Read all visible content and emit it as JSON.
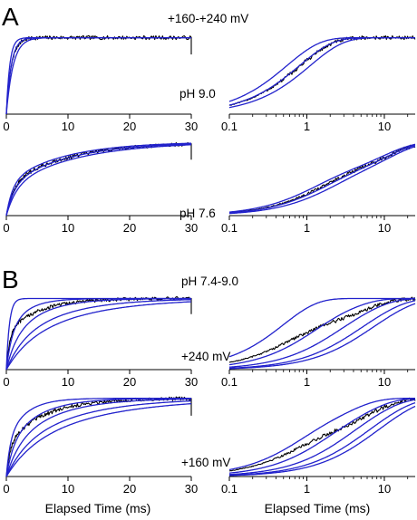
{
  "panel_labels": [
    "A",
    "B"
  ],
  "annotations": {
    "a_voltage": "+160-+240 mV",
    "a_ph_top": "pH 9.0",
    "a_ph_bottom": "pH 7.6",
    "b_ph": "pH 7.4-9.0",
    "b_voltage_top": "+240 mV",
    "b_voltage_bottom": "+160 mV"
  },
  "xlabels": {
    "left": "Elapsed Time (ms)",
    "right": "Elapsed Time (ms)"
  },
  "colors": {
    "data": "#000000",
    "fit": "#2222cc"
  },
  "chart_data": [
    {
      "type": "line",
      "id": "A-pH9.0-linear",
      "xscale": "linear",
      "xlim": [
        0,
        30
      ],
      "xticks": [
        0,
        10,
        20,
        30
      ],
      "tick_labels": [
        "0",
        "10",
        "20",
        "30"
      ],
      "ylim": [
        0,
        1.1
      ],
      "annotation": "pH 9.0",
      "series": [
        {
          "role": "data",
          "tau": [
            0.75,
            0.9
          ],
          "w": [
            0.5,
            0.5
          ],
          "amp": 1.0
        },
        {
          "role": "fit",
          "tau": [
            0.55
          ],
          "w": [
            1
          ],
          "amp": 1.0
        },
        {
          "role": "fit",
          "tau": [
            0.8
          ],
          "w": [
            1
          ],
          "amp": 1.0
        },
        {
          "role": "fit",
          "tau": [
            1.1
          ],
          "w": [
            1
          ],
          "amp": 1.0
        }
      ]
    },
    {
      "type": "line",
      "id": "A-pH9.0-log",
      "xscale": "log",
      "xlim": [
        0.1,
        25
      ],
      "xticks": [
        0.1,
        1,
        10
      ],
      "tick_labels": [
        "0.1",
        "1",
        "10"
      ],
      "ylim": [
        0,
        1.1
      ],
      "annotation": "pH 9.0",
      "series": [
        {
          "role": "data",
          "tau": [
            0.75,
            0.9
          ],
          "w": [
            0.5,
            0.5
          ],
          "amp": 1.0
        },
        {
          "role": "fit",
          "tau": [
            0.55
          ],
          "w": [
            1
          ],
          "amp": 1.0
        },
        {
          "role": "fit",
          "tau": [
            0.8
          ],
          "w": [
            1
          ],
          "amp": 1.0
        },
        {
          "role": "fit",
          "tau": [
            1.1
          ],
          "w": [
            1
          ],
          "amp": 1.0
        }
      ]
    },
    {
      "type": "line",
      "id": "A-pH7.6-linear",
      "xscale": "linear",
      "xlim": [
        0,
        30
      ],
      "xticks": [
        0,
        10,
        20,
        30
      ],
      "tick_labels": [
        "0",
        "10",
        "20",
        "30"
      ],
      "ylim": [
        0,
        1.1
      ],
      "annotation": "pH 7.6",
      "series": [
        {
          "role": "data",
          "tau": [
            1.2,
            10
          ],
          "w": [
            0.42,
            0.58
          ],
          "amp": 1.0
        },
        {
          "role": "fit",
          "tau": [
            1.0,
            9
          ],
          "w": [
            0.44,
            0.56
          ],
          "amp": 1.0
        },
        {
          "role": "fit",
          "tau": [
            1.3,
            10
          ],
          "w": [
            0.41,
            0.59
          ],
          "amp": 1.0
        },
        {
          "role": "fit",
          "tau": [
            1.6,
            11
          ],
          "w": [
            0.38,
            0.62
          ],
          "amp": 1.0
        }
      ]
    },
    {
      "type": "line",
      "id": "A-pH7.6-log",
      "xscale": "log",
      "xlim": [
        0.1,
        25
      ],
      "xticks": [
        0.1,
        1,
        10
      ],
      "tick_labels": [
        "0.1",
        "1",
        "10"
      ],
      "ylim": [
        0,
        1.1
      ],
      "annotation": "pH 7.6",
      "series": [
        {
          "role": "data",
          "tau": [
            1.2,
            10
          ],
          "w": [
            0.42,
            0.58
          ],
          "amp": 1.0
        },
        {
          "role": "fit",
          "tau": [
            1.0,
            9
          ],
          "w": [
            0.44,
            0.56
          ],
          "amp": 1.0
        },
        {
          "role": "fit",
          "tau": [
            1.3,
            10
          ],
          "w": [
            0.41,
            0.59
          ],
          "amp": 1.0
        },
        {
          "role": "fit",
          "tau": [
            1.6,
            11
          ],
          "w": [
            0.38,
            0.62
          ],
          "amp": 1.0
        }
      ]
    },
    {
      "type": "line",
      "id": "B-240mV-linear",
      "xscale": "linear",
      "xlim": [
        0,
        30
      ],
      "xticks": [
        0,
        10,
        20,
        30
      ],
      "tick_labels": [
        "0",
        "10",
        "20",
        "30"
      ],
      "ylim": [
        0,
        1.1
      ],
      "annotation": "+240 mV",
      "series": [
        {
          "role": "data",
          "tau": [
            0.5,
            5
          ],
          "w": [
            0.5,
            0.5
          ],
          "amp": 1.0
        },
        {
          "role": "fit",
          "tau": [
            0.5
          ],
          "w": [
            1
          ],
          "amp": 1.0
        },
        {
          "role": "fit",
          "tau": [
            0.9,
            3
          ],
          "w": [
            0.5,
            0.5
          ],
          "amp": 1.0
        },
        {
          "role": "fit",
          "tau": [
            1.5,
            5
          ],
          "w": [
            0.35,
            0.65
          ],
          "amp": 1.0
        },
        {
          "role": "fit",
          "tau": [
            2.5,
            8
          ],
          "w": [
            0.3,
            0.7
          ],
          "amp": 1.0
        },
        {
          "role": "fit",
          "tau": [
            3.5,
            11
          ],
          "w": [
            0.3,
            0.7
          ],
          "amp": 1.0
        }
      ]
    },
    {
      "type": "line",
      "id": "B-240mV-log",
      "xscale": "log",
      "xlim": [
        0.1,
        25
      ],
      "xticks": [
        0.1,
        1,
        10
      ],
      "tick_labels": [
        "0.1",
        "1",
        "10"
      ],
      "ylim": [
        0,
        1.1
      ],
      "annotation": "+240 mV",
      "series": [
        {
          "role": "data",
          "tau": [
            0.5,
            5
          ],
          "w": [
            0.5,
            0.5
          ],
          "amp": 1.0
        },
        {
          "role": "fit",
          "tau": [
            0.5
          ],
          "w": [
            1
          ],
          "amp": 1.0
        },
        {
          "role": "fit",
          "tau": [
            0.9,
            3
          ],
          "w": [
            0.5,
            0.5
          ],
          "amp": 1.0
        },
        {
          "role": "fit",
          "tau": [
            1.5,
            5
          ],
          "w": [
            0.35,
            0.65
          ],
          "amp": 1.0
        },
        {
          "role": "fit",
          "tau": [
            2.5,
            8
          ],
          "w": [
            0.3,
            0.7
          ],
          "amp": 1.0
        },
        {
          "role": "fit",
          "tau": [
            3.5,
            11
          ],
          "w": [
            0.3,
            0.7
          ],
          "amp": 1.0
        }
      ]
    },
    {
      "type": "line",
      "id": "B-160mV-linear",
      "xscale": "linear",
      "xlim": [
        0,
        30
      ],
      "xticks": [
        0,
        10,
        20,
        30
      ],
      "tick_labels": [
        "0",
        "10",
        "20",
        "30"
      ],
      "ylim": [
        0,
        1.1
      ],
      "annotation": "+160 mV",
      "series": [
        {
          "role": "data",
          "tau": [
            0.6,
            6
          ],
          "w": [
            0.4,
            0.6
          ],
          "amp": 1.0
        },
        {
          "role": "fit",
          "tau": [
            0.6,
            3
          ],
          "w": [
            0.45,
            0.55
          ],
          "amp": 1.0
        },
        {
          "role": "fit",
          "tau": [
            1.2,
            5
          ],
          "w": [
            0.4,
            0.6
          ],
          "amp": 1.0
        },
        {
          "role": "fit",
          "tau": [
            2,
            7
          ],
          "w": [
            0.33,
            0.67
          ],
          "amp": 1.0
        },
        {
          "role": "fit",
          "tau": [
            3,
            10
          ],
          "w": [
            0.3,
            0.7
          ],
          "amp": 1.0
        },
        {
          "role": "fit",
          "tau": [
            4,
            13
          ],
          "w": [
            0.3,
            0.7
          ],
          "amp": 1.0
        }
      ]
    },
    {
      "type": "line",
      "id": "B-160mV-log",
      "xscale": "log",
      "xlim": [
        0.1,
        25
      ],
      "xticks": [
        0.1,
        1,
        10
      ],
      "tick_labels": [
        "0.1",
        "1",
        "10"
      ],
      "ylim": [
        0,
        1.1
      ],
      "annotation": "+160 mV",
      "series": [
        {
          "role": "data",
          "tau": [
            0.6,
            6
          ],
          "w": [
            0.4,
            0.6
          ],
          "amp": 1.0
        },
        {
          "role": "fit",
          "tau": [
            0.6,
            3
          ],
          "w": [
            0.45,
            0.55
          ],
          "amp": 1.0
        },
        {
          "role": "fit",
          "tau": [
            1.2,
            5
          ],
          "w": [
            0.4,
            0.6
          ],
          "amp": 1.0
        },
        {
          "role": "fit",
          "tau": [
            2,
            7
          ],
          "w": [
            0.33,
            0.67
          ],
          "amp": 1.0
        },
        {
          "role": "fit",
          "tau": [
            3,
            10
          ],
          "w": [
            0.3,
            0.7
          ],
          "amp": 1.0
        },
        {
          "role": "fit",
          "tau": [
            4,
            13
          ],
          "w": [
            0.3,
            0.7
          ],
          "amp": 1.0
        }
      ]
    }
  ]
}
